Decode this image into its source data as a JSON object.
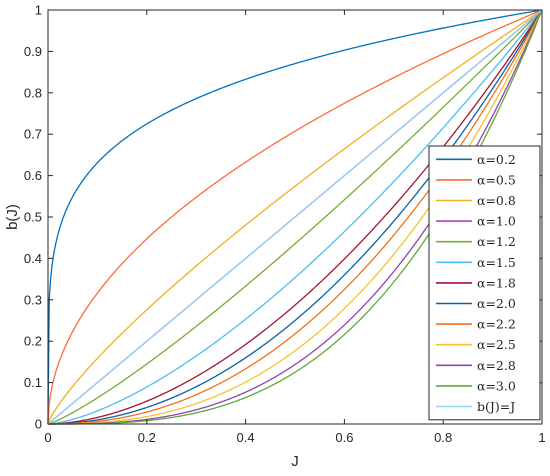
{
  "chart_data": {
    "type": "line",
    "xlabel": "J",
    "ylabel": "b(J)",
    "xlim": [
      0,
      1
    ],
    "ylim": [
      0,
      1
    ],
    "xticks": [
      "0",
      "0.2",
      "0.4",
      "0.6",
      "0.8",
      "1"
    ],
    "yticks": [
      "0",
      "0.1",
      "0.2",
      "0.3",
      "0.4",
      "0.5",
      "0.6",
      "0.7",
      "0.8",
      "0.9",
      "1"
    ],
    "grid": false,
    "legend_position": "right",
    "series": [
      {
        "name": "α=0.2",
        "alpha": 0.2,
        "color": "#0072bd"
      },
      {
        "name": "α=0.5",
        "alpha": 0.5,
        "color": "#ff6a3d"
      },
      {
        "name": "α=0.8",
        "alpha": 0.8,
        "color": "#edb120"
      },
      {
        "name": "α=1.0",
        "alpha": 1.0,
        "color": "#b83dcc"
      },
      {
        "name": "α=1.2",
        "alpha": 1.2,
        "color": "#77ac30"
      },
      {
        "name": "α=1.5",
        "alpha": 1.5,
        "color": "#4dbeee"
      },
      {
        "name": "α=1.8",
        "alpha": 1.8,
        "color": "#a2142f"
      },
      {
        "name": "α=2.0",
        "alpha": 2.0,
        "color": "#0b5fa8"
      },
      {
        "name": "α=2.2",
        "alpha": 2.2,
        "color": "#f2701a"
      },
      {
        "name": "α=2.5",
        "alpha": 2.5,
        "color": "#f5c232"
      },
      {
        "name": "α=2.8",
        "alpha": 2.8,
        "color": "#8e44ad"
      },
      {
        "name": "α=3.0",
        "alpha": 3.0,
        "color": "#5fa83a"
      },
      {
        "name": "b(J)=J",
        "alpha": null,
        "color": "#8fd3f2"
      }
    ]
  }
}
